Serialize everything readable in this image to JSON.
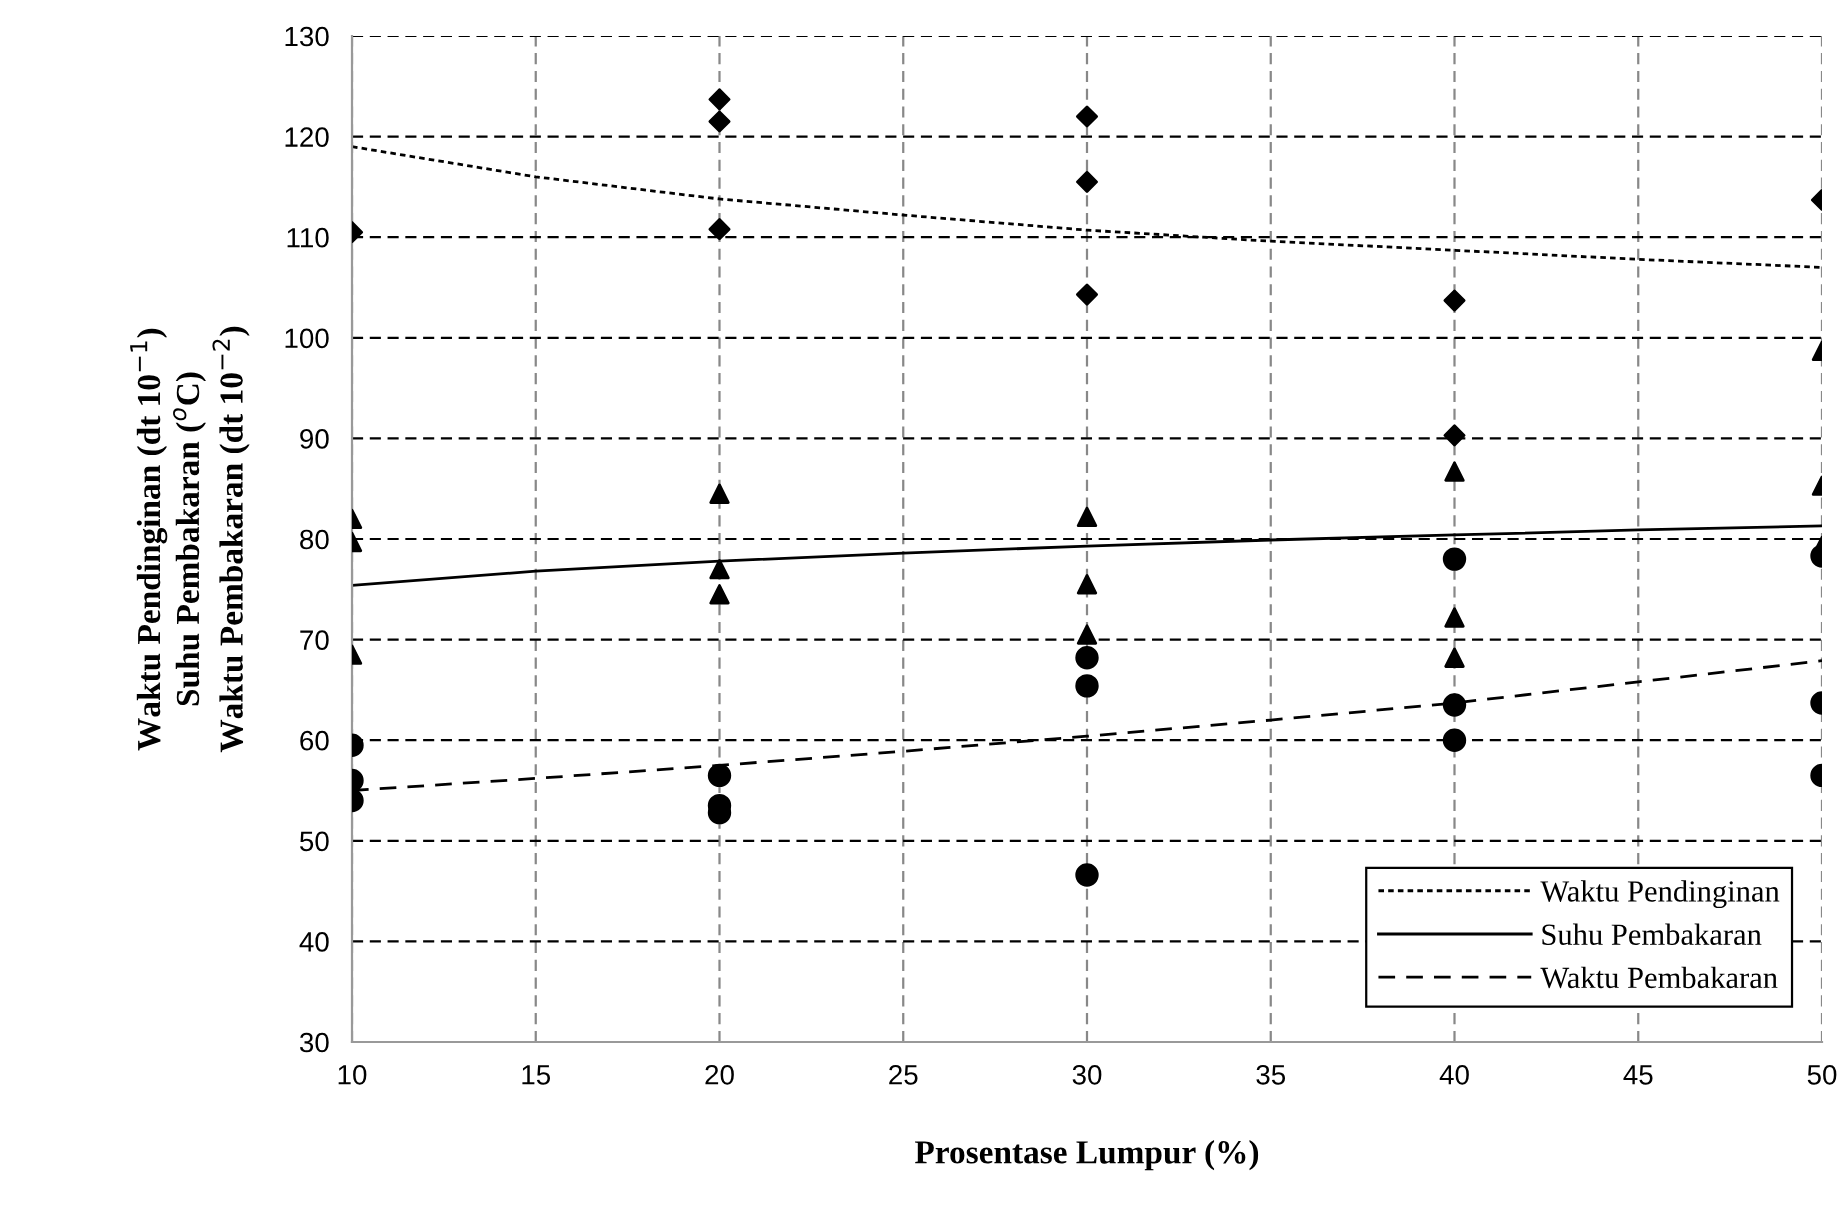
{
  "chart_data": {
    "type": "scatter",
    "xlabel": "Prosentase Lumpur (%)",
    "ylabel": "Waktu Pendinginan (dt 10$^{−1}$)\nSuhu Pembakaran ($^{o}$C)\nWaktu Pembakaran (dt 10$^{−2}$)",
    "xlim": [
      10,
      50
    ],
    "xticks": [
      10,
      15,
      20,
      25,
      30,
      35,
      40,
      45,
      50
    ],
    "ylim": [
      30,
      130
    ],
    "yticks": [
      30,
      40,
      50,
      60,
      70,
      80,
      90,
      100,
      110,
      120,
      130
    ],
    "grid": true,
    "legend": "bottom right",
    "series": [
      {
        "marker": "diamond",
        "color": "#000000",
        "x": [
          10,
          20,
          20,
          20,
          30,
          30,
          30,
          40,
          40,
          50
        ],
        "values": [
          110.5,
          123.7,
          121.5,
          110.8,
          122,
          115.5,
          104.3,
          103.7,
          90.3,
          113.7
        ]
      },
      {
        "marker": "triangle",
        "color": "#000000",
        "x": [
          10,
          10,
          10,
          20,
          20,
          20,
          30,
          30,
          30,
          40,
          40,
          40,
          50,
          50,
          50
        ],
        "values": [
          82,
          79.7,
          68.5,
          84.5,
          77,
          74.5,
          82.2,
          75.5,
          70.5,
          86.7,
          72.2,
          68.2,
          98.7,
          85.3,
          79.3
        ]
      },
      {
        "marker": "circle",
        "color": "#000000",
        "x": [
          10,
          10,
          10,
          20,
          20,
          20,
          30,
          30,
          30,
          40,
          40,
          40,
          50,
          50,
          50
        ],
        "values": [
          59.5,
          56,
          54,
          56.5,
          53.5,
          52.8,
          68.2,
          65.4,
          46.6,
          78,
          63.5,
          60,
          78.3,
          63.7,
          56.5
        ]
      },
      {
        "type": "line",
        "name": "Waktu Pendinginan",
        "line_style": "dotted",
        "color": "#000000",
        "x": [
          10,
          15,
          20,
          25,
          30,
          35,
          40,
          45,
          50
        ],
        "values": [
          119,
          116,
          113.8,
          112.2,
          110.7,
          109.6,
          108.7,
          107.8,
          107
        ]
      },
      {
        "type": "line",
        "name": "Suhu Pembakaran",
        "line_style": "solid",
        "color": "#000000",
        "x": [
          10,
          15,
          20,
          25,
          30,
          35,
          40,
          45,
          50
        ],
        "values": [
          75.4,
          76.8,
          77.8,
          78.6,
          79.3,
          79.9,
          80.4,
          80.9,
          81.3
        ]
      },
      {
        "type": "line",
        "name": "Waktu Pembakaran",
        "line_style": "dashed",
        "color": "#000000",
        "x": [
          10,
          15,
          20,
          25,
          30,
          35,
          40,
          45,
          50
        ],
        "values": [
          55,
          56.2,
          57.5,
          58.9,
          60.4,
          62,
          63.7,
          65.8,
          67.9
        ]
      }
    ]
  }
}
